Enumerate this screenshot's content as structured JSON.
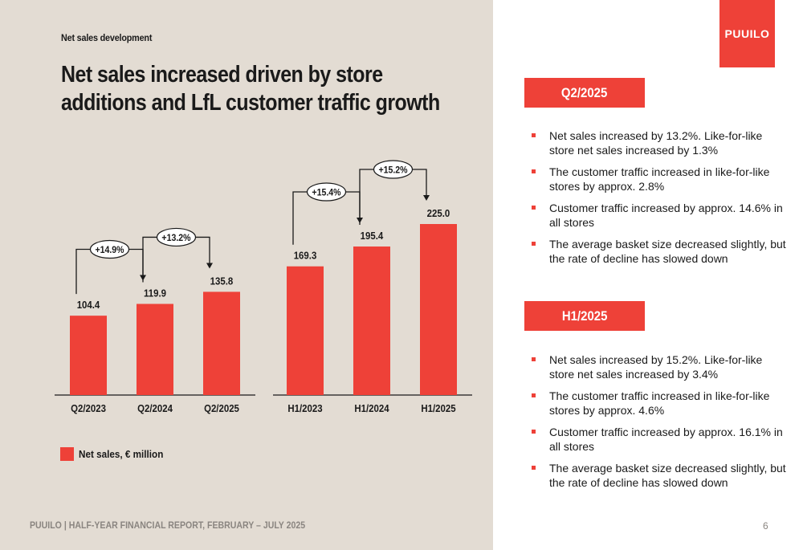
{
  "header": {
    "section_label": "Net sales development",
    "headline": "Net sales increased driven by store additions and LfL customer traffic growth"
  },
  "brand": {
    "logo_text": "PUUILO",
    "accent_color": "#ee4138"
  },
  "chart_data": {
    "type": "bar",
    "title": "Net sales increased driven by store additions and LfL customer traffic growth",
    "legend": [
      "Net sales, € million"
    ],
    "ylabel": "Net sales, € million",
    "ylim": [
      0,
      225
    ],
    "groups": [
      {
        "categories": [
          "Q2/2023",
          "Q2/2024",
          "Q2/2025"
        ],
        "values": [
          104.4,
          119.9,
          135.8
        ],
        "value_labels": [
          "104.4",
          "119.9",
          "135.8"
        ],
        "growth_labels": [
          "+14.9%",
          "+13.2%"
        ]
      },
      {
        "categories": [
          "H1/2023",
          "H1/2024",
          "H1/2025"
        ],
        "values": [
          169.3,
          195.4,
          225.0
        ],
        "value_labels": [
          "169.3",
          "195.4",
          "225.0"
        ],
        "growth_labels": [
          "+15.4%",
          "+15.2%"
        ]
      }
    ]
  },
  "legend": {
    "label": "Net sales, € million"
  },
  "q2": {
    "tag": "Q2/2025",
    "bullets": [
      "Net sales increased by 13.2%. Like-for-like store net sales increased by 1.3%",
      "The customer traffic increased in like-for-like stores by approx. 2.8%",
      "Customer traffic increased by approx. 14.6% in all stores",
      "The average basket size decreased slightly, but the rate of decline has slowed down"
    ]
  },
  "h1": {
    "tag": "H1/2025",
    "bullets": [
      "Net sales increased by 15.2%. Like-for-like store net sales increased by 3.4%",
      "The customer traffic increased in like-for-like stores by approx. 4.6%",
      "Customer traffic increased by approx. 16.1% in all stores",
      "The average basket size decreased slightly, but the rate of decline has slowed down"
    ]
  },
  "footer": {
    "text": "PUUILO | HALF-YEAR FINANCIAL REPORT, FEBRUARY – JULY 2025",
    "page_number": "6"
  }
}
